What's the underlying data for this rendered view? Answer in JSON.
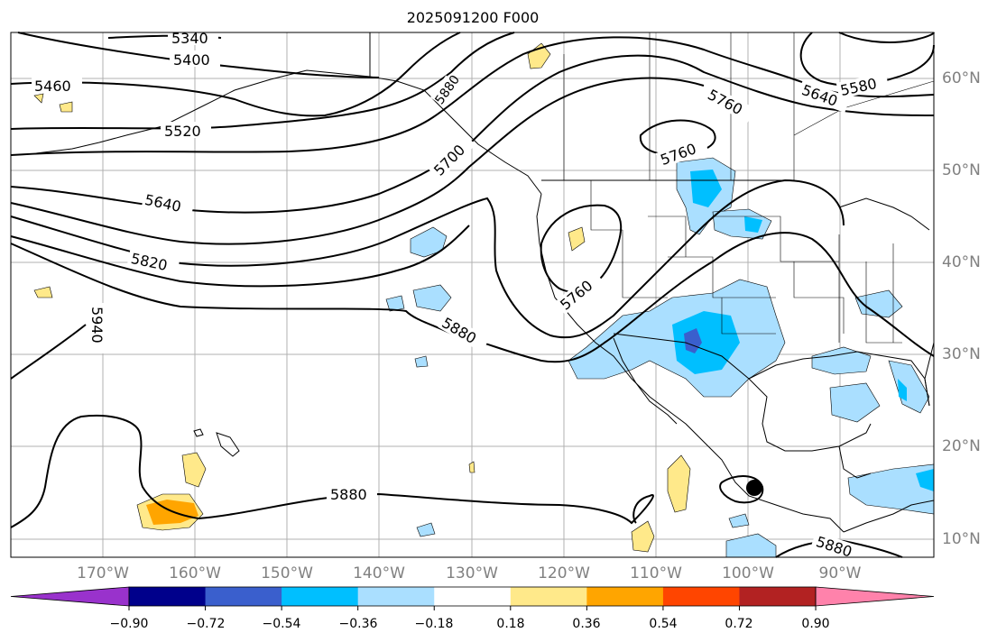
{
  "title": "2025091200 F000",
  "lat_labels": [
    "60°N",
    "50°N",
    "40°N",
    "30°N",
    "20°N",
    "10°N"
  ],
  "lon_labels": [
    "170°W",
    "160°W",
    "150°W",
    "140°W",
    "130°W",
    "120°W",
    "110°W",
    "100°W",
    "90°W"
  ],
  "contour_labels": [
    "5340",
    "5400",
    "5460",
    "5520",
    "5640",
    "5820",
    "5940",
    "5880",
    "5880",
    "5880",
    "5760",
    "5760",
    "5760",
    "5700",
    "5640",
    "5580",
    "5880"
  ],
  "colorbar": {
    "ticks": [
      "−0.90",
      "−0.72",
      "−0.54",
      "−0.36",
      "−0.18",
      "0.18",
      "0.36",
      "0.54",
      "0.72",
      "0.90"
    ],
    "colors": [
      "#9932cc",
      "#00008b",
      "#3a5fcd",
      "#00bfff",
      "#aadfff",
      "#ffffff",
      "#ffe98a",
      "#ffa500",
      "#ff4500",
      "#b22222",
      "#ff82ab"
    ]
  },
  "shading_colors": {
    "light_blue": "#aadfff",
    "blue": "#00bfff",
    "dark_blue": "#3a5fcd",
    "light_yellow": "#ffe98a",
    "orange": "#ffa500"
  },
  "marker": "black-dot"
}
